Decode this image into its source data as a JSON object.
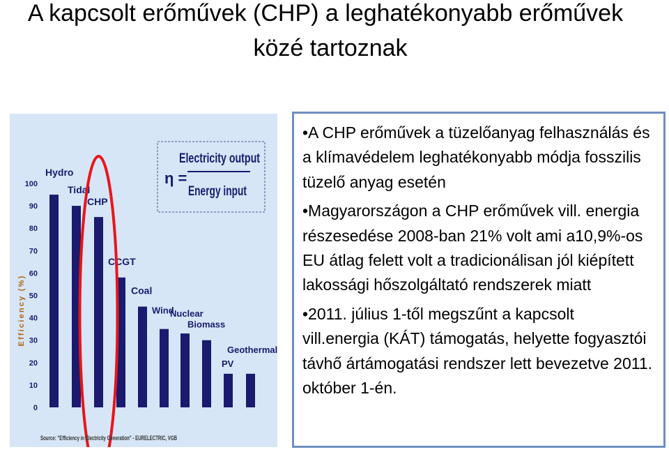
{
  "title": {
    "line1": "A kapcsolt erőművek (CHP) a leghatékonyabb erőművek",
    "line2": "közé tartoznak"
  },
  "formula": {
    "eta": "η =",
    "numerator": "Electricity output",
    "denominator": "Energy input"
  },
  "source": "Source: \"Efficiency in Electricity Generation\" - EURELECTRIC, VGB",
  "bullets": [
    "•A CHP erőművek a tüzelőanyag felhasználás és a klímavédelem leghatékonyabb módja fosszilis tüzelő anyag esetén",
    "•Magyarországon a CHP erőművek vill. energia részesedése 2008-ban 21% volt ami a10,9%-os EU átlag felett volt a tradicionálisan jól kiépített lakossági hőszolgáltató rendszerek miatt",
    "•2011. július 1-től megszűnt a kapcsolt vill.energia (KÁT) támogatás, helyette fogyasztói távhő ártámogatási rendszer lett bevezetve 2011. október 1-én."
  ],
  "colors": {
    "bar": "#1a1a6e",
    "label": "#1a1a6e",
    "highlight": "#e8151b",
    "panel": "#d6e6f6",
    "border": "#6f8fbf"
  },
  "chart_data": {
    "type": "bar",
    "categories": [
      "Hydro",
      "Tidal",
      "CHP",
      "CCGT",
      "Coal",
      "Wind",
      "Nuclear",
      "Biomass",
      "PV",
      "Geothermal"
    ],
    "values": [
      95,
      90,
      85,
      58,
      45,
      35,
      33,
      30,
      15,
      15
    ],
    "ylabel": "Efficiency (%)",
    "ylim": [
      0,
      100
    ],
    "yticks": [
      "0",
      "10",
      "20",
      "30",
      "40",
      "50",
      "60",
      "70",
      "80",
      "90",
      "100"
    ],
    "grid": false,
    "highlight": "CHP"
  }
}
